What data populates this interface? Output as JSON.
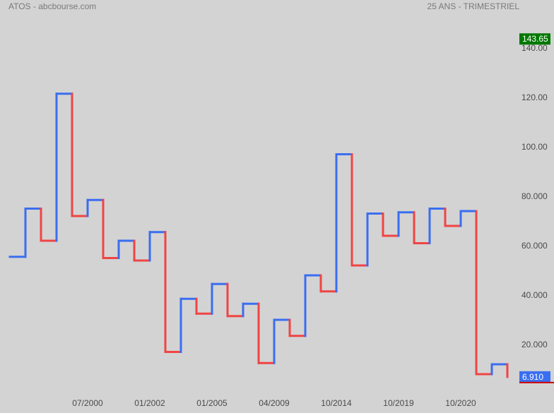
{
  "header": {
    "title": "ATOS - abcbourse.com",
    "period": "25 ANS - TRIMESTRIEL"
  },
  "chart_data": {
    "type": "line",
    "style": "step",
    "y_axis_side": "right",
    "ylim": [
      0,
      148
    ],
    "y_ticks": [
      "20.000",
      "40.000",
      "60.000",
      "80.000",
      "100.00",
      "120.00",
      "140.00"
    ],
    "y_tick_values": [
      20,
      40,
      60,
      80,
      100,
      120,
      140
    ],
    "x_tick_labels": [
      "07/2000",
      "01/2002",
      "01/2005",
      "04/2009",
      "10/2014",
      "10/2019",
      "10/2020"
    ],
    "x_tick_index": [
      5,
      9,
      13,
      17,
      21,
      25,
      29
    ],
    "values": [
      55.5,
      75,
      62,
      121.5,
      72,
      78.5,
      55,
      62,
      54,
      65.5,
      17,
      38.5,
      32.5,
      44.5,
      31.5,
      36.5,
      12.5,
      30,
      23.5,
      48,
      41.5,
      97,
      52,
      73,
      64,
      73.5,
      61,
      75,
      68,
      74,
      8,
      12
    ],
    "last_value": 6.91,
    "labels": {
      "high": "143.65",
      "last": "6.910"
    },
    "colors": {
      "up": "#3a6ef0",
      "down": "#f04444",
      "high_badge": "#007800",
      "last_badge": "#3a6ef0",
      "last_line": "#d00000",
      "axis_text": "#4a4a4a",
      "background": "#d3d3d3"
    },
    "grid": false,
    "legend": "none"
  }
}
